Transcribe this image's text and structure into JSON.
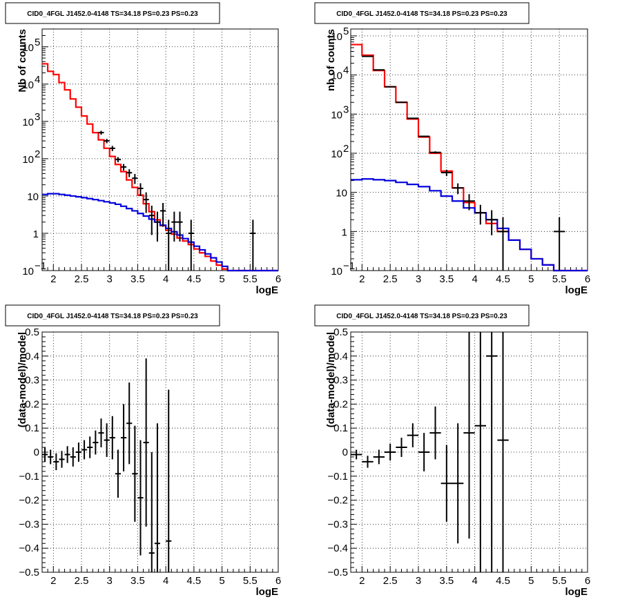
{
  "chart_data": [
    {
      "type": "line",
      "title": "CID0_4FGL J1452.0-4148 TS=34.18 PS=0.23 PS=0.23",
      "xlabel": "logE",
      "ylabel": "Nb of counts",
      "xlim": [
        1.8,
        6.0
      ],
      "ylim": [
        0.1,
        300000
      ],
      "yscale": "log",
      "x_ticks": [
        "2",
        "2.5",
        "3",
        "3.5",
        "4",
        "4.5",
        "5",
        "5.5",
        "6"
      ],
      "y_ticks": [
        {
          "v": 0.1,
          "base": "10",
          "exp": "−1"
        },
        {
          "v": 1,
          "base": "1",
          "exp": ""
        },
        {
          "v": 10,
          "base": "10",
          "exp": ""
        },
        {
          "v": 100,
          "base": "10",
          "exp": "2"
        },
        {
          "v": 1000,
          "base": "10",
          "exp": "3"
        },
        {
          "v": 10000,
          "base": "10",
          "exp": "4"
        },
        {
          "v": 100000,
          "base": "10",
          "exp": "5"
        }
      ],
      "grid": true,
      "bin_width": 0.1,
      "series": [
        {
          "kind": "step",
          "color": "#ff0000",
          "bins_lo": [
            1.8,
            1.9,
            2.0,
            2.1,
            2.2,
            2.3,
            2.4,
            2.5,
            2.6,
            2.7,
            2.8,
            2.9,
            3.0,
            3.1,
            3.2,
            3.3,
            3.4,
            3.5,
            3.6,
            3.7,
            3.8,
            3.9,
            4.0,
            4.1,
            4.2,
            4.3,
            4.4,
            4.5,
            4.6,
            4.7,
            4.8,
            4.9,
            5.0,
            5.1,
            5.2,
            5.3,
            5.4,
            5.5,
            5.6,
            5.7,
            5.8,
            5.9
          ],
          "values": [
            35000,
            22000,
            18000,
            11000,
            7000,
            4000,
            2400,
            1400,
            850,
            500,
            320,
            190,
            115,
            70,
            45,
            27,
            17,
            10.5,
            6.2,
            3.8,
            2.3,
            1.6,
            1.2,
            0.95,
            0.75,
            0.62,
            0.5,
            0.38,
            0.3,
            0.24,
            0.18,
            0.14,
            0.11,
            0.1,
            0.1,
            0.1,
            0.1,
            0.1,
            0.1,
            0.1,
            0.1,
            0.1
          ]
        },
        {
          "kind": "step",
          "color": "#0000dd",
          "bins_lo": [
            1.8,
            1.9,
            2.0,
            2.1,
            2.2,
            2.3,
            2.4,
            2.5,
            2.6,
            2.7,
            2.8,
            2.9,
            3.0,
            3.1,
            3.2,
            3.3,
            3.4,
            3.5,
            3.6,
            3.7,
            3.8,
            3.9,
            4.0,
            4.1,
            4.2,
            4.3,
            4.4,
            4.5,
            4.6,
            4.7,
            4.8,
            4.9,
            5.0,
            5.1,
            5.2,
            5.3,
            5.4,
            5.5,
            5.6,
            5.7,
            5.8,
            5.9
          ],
          "values": [
            11,
            11.5,
            11.5,
            11,
            10.5,
            10,
            9.5,
            9,
            8.5,
            8,
            7.5,
            7,
            6.5,
            6,
            5.3,
            4.6,
            4,
            3.4,
            2.9,
            2.4,
            2,
            1.65,
            1.35,
            1.1,
            0.9,
            0.72,
            0.58,
            0.45,
            0.36,
            0.28,
            0.22,
            0.17,
            0.13,
            0.1,
            0.1,
            0.1,
            0.1,
            0.1,
            0.1,
            0.1,
            0.1,
            0.1
          ]
        },
        {
          "kind": "points",
          "color": "#000000",
          "xerr": 0.05,
          "x": [
            2.85,
            2.95,
            3.05,
            3.15,
            3.25,
            3.35,
            3.45,
            3.55,
            3.65,
            3.75,
            3.85,
            3.95,
            4.05,
            4.15,
            4.25,
            4.45,
            5.55
          ],
          "y": [
            500,
            300,
            190,
            95,
            60,
            42,
            30,
            16,
            8,
            3,
            2,
            4,
            1,
            2,
            2,
            1,
            1
          ],
          "ylo": [
            440,
            260,
            160,
            80,
            48,
            32,
            21,
            10,
            3.5,
            0.9,
            0.6,
            1.5,
            0.1,
            0.6,
            0.6,
            0.1,
            0.1
          ],
          "yhi": [
            560,
            340,
            220,
            110,
            72,
            52,
            39,
            22,
            12.5,
            5.5,
            3.8,
            6.5,
            2.3,
            3.8,
            3.8,
            2.3,
            2.3
          ]
        }
      ]
    },
    {
      "type": "line",
      "title": "CID0_4FGL J1452.0-4148 TS=34.18 PS=0.23 PS=0.23",
      "xlabel": "logE",
      "ylabel": "nb of counts",
      "xlim": [
        1.8,
        6.0
      ],
      "ylim": [
        0.1,
        150000
      ],
      "yscale": "log",
      "x_ticks": [
        "2",
        "2.5",
        "3",
        "3.5",
        "4",
        "4.5",
        "5",
        "5.5",
        "6"
      ],
      "y_ticks": [
        {
          "v": 0.1,
          "base": "10",
          "exp": "−1"
        },
        {
          "v": 1,
          "base": "1",
          "exp": ""
        },
        {
          "v": 10,
          "base": "10",
          "exp": ""
        },
        {
          "v": 100,
          "base": "10",
          "exp": "2"
        },
        {
          "v": 1000,
          "base": "10",
          "exp": "3"
        },
        {
          "v": 10000,
          "base": "10",
          "exp": "4"
        },
        {
          "v": 100000,
          "base": "10",
          "exp": "5"
        }
      ],
      "grid": true,
      "bin_width": 0.2,
      "series": [
        {
          "kind": "step",
          "color": "#ff0000",
          "bins_lo": [
            1.8,
            2.0,
            2.2,
            2.4,
            2.6,
            2.8,
            3.0,
            3.2,
            3.4,
            3.6,
            3.8,
            4.0,
            4.2,
            4.4,
            4.6,
            4.8,
            5.0,
            5.2,
            5.4,
            5.6,
            5.8
          ],
          "values": [
            60000,
            32000,
            13000,
            5000,
            2000,
            750,
            260,
            100,
            35,
            13,
            5.5,
            3,
            1.6,
            1,
            0.6,
            0.35,
            0.2,
            0.14,
            0.1,
            0.1,
            0.1
          ]
        },
        {
          "kind": "step",
          "color": "#0000dd",
          "bins_lo": [
            1.8,
            2.0,
            2.2,
            2.4,
            2.6,
            2.8,
            3.0,
            3.2,
            3.4,
            3.6,
            3.8,
            4.0,
            4.2,
            4.4,
            4.6,
            4.8,
            5.0,
            5.2,
            5.4,
            5.6,
            5.8
          ],
          "values": [
            21,
            22,
            21,
            20,
            18,
            16,
            14,
            11,
            8,
            6,
            4,
            3,
            2,
            1.2,
            0.6,
            0.35,
            0.2,
            0.14,
            0.1,
            0.1,
            0.1
          ]
        },
        {
          "kind": "points",
          "color": "#000000",
          "xerr": 0.1,
          "x": [
            2.1,
            2.3,
            2.5,
            2.7,
            2.9,
            3.1,
            3.3,
            3.5,
            3.7,
            3.9,
            4.1,
            4.3,
            4.5,
            5.5
          ],
          "y": [
            30000,
            13500,
            5000,
            2000,
            780,
            270,
            105,
            32,
            13,
            6,
            3,
            2,
            1,
            1
          ],
          "ylo": [
            29500,
            13200,
            4900,
            1950,
            760,
            260,
            98,
            26,
            9,
            3.5,
            1.5,
            0.8,
            0.1,
            0.1
          ],
          "yhi": [
            30500,
            13800,
            5100,
            2050,
            800,
            280,
            112,
            38,
            17,
            9,
            4.8,
            3.5,
            2.3,
            2.3
          ]
        }
      ]
    },
    {
      "type": "scatter",
      "title": "CID0_4FGL J1452.0-4148 TS=34.18 PS=0.23 PS=0.23",
      "xlabel": "logE",
      "ylabel": "(data-model)/model",
      "xlim": [
        1.8,
        6.0
      ],
      "ylim": [
        -0.5,
        0.5
      ],
      "x_ticks": [
        "2",
        "2.5",
        "3",
        "3.5",
        "4",
        "4.5",
        "5",
        "5.5",
        "6"
      ],
      "y_ticks": [
        "−0.5",
        "−0.4",
        "−0.3",
        "−0.2",
        "−0.1",
        "0",
        "0.1",
        "0.2",
        "0.3",
        "0.4",
        "0.5"
      ],
      "grid": true,
      "xerr": 0.05,
      "points": [
        {
          "x": 1.85,
          "y": -0.01,
          "err": 0.03
        },
        {
          "x": 1.95,
          "y": -0.02,
          "err": 0.03
        },
        {
          "x": 2.05,
          "y": -0.04,
          "err": 0.035
        },
        {
          "x": 2.15,
          "y": -0.03,
          "err": 0.035
        },
        {
          "x": 2.25,
          "y": -0.01,
          "err": 0.035
        },
        {
          "x": 2.35,
          "y": -0.02,
          "err": 0.04
        },
        {
          "x": 2.45,
          "y": 0.0,
          "err": 0.04
        },
        {
          "x": 2.55,
          "y": 0.01,
          "err": 0.04
        },
        {
          "x": 2.65,
          "y": 0.02,
          "err": 0.045
        },
        {
          "x": 2.75,
          "y": 0.04,
          "err": 0.05
        },
        {
          "x": 2.85,
          "y": 0.08,
          "err": 0.06
        },
        {
          "x": 2.95,
          "y": 0.05,
          "err": 0.07
        },
        {
          "x": 3.05,
          "y": 0.06,
          "err": 0.09
        },
        {
          "x": 3.15,
          "y": -0.09,
          "err": 0.1
        },
        {
          "x": 3.25,
          "y": 0.06,
          "err": 0.14
        },
        {
          "x": 3.35,
          "y": 0.12,
          "err": 0.17
        },
        {
          "x": 3.45,
          "y": -0.09,
          "err": 0.2
        },
        {
          "x": 3.55,
          "y": -0.19,
          "err": 0.24
        },
        {
          "x": 3.65,
          "y": 0.04,
          "err": 0.35
        },
        {
          "x": 3.75,
          "y": -0.42,
          "err": 0.42
        },
        {
          "x": 3.85,
          "y": -0.38,
          "err": 0.5
        },
        {
          "x": 4.05,
          "y": -0.37,
          "err": 0.63
        }
      ]
    },
    {
      "type": "scatter",
      "title": "CID0_4FGL J1452.0-4148 TS=34.18 PS=0.23 PS=0.23",
      "xlabel": "logE",
      "ylabel": "(data-model)/model",
      "xlim": [
        1.8,
        6.0
      ],
      "ylim": [
        -0.5,
        0.5
      ],
      "x_ticks": [
        "2",
        "2.5",
        "3",
        "3.5",
        "4",
        "4.5",
        "5",
        "5.5",
        "6"
      ],
      "y_ticks": [
        "−0.5",
        "−0.4",
        "−0.3",
        "−0.2",
        "−0.1",
        "0",
        "0.1",
        "0.2",
        "0.3",
        "0.4",
        "0.5"
      ],
      "grid": true,
      "xerr": 0.1,
      "points": [
        {
          "x": 1.9,
          "y": -0.01,
          "err": 0.02
        },
        {
          "x": 2.1,
          "y": -0.04,
          "err": 0.025
        },
        {
          "x": 2.3,
          "y": -0.02,
          "err": 0.03
        },
        {
          "x": 2.5,
          "y": 0.0,
          "err": 0.035
        },
        {
          "x": 2.7,
          "y": 0.02,
          "err": 0.04
        },
        {
          "x": 2.9,
          "y": 0.07,
          "err": 0.05
        },
        {
          "x": 3.1,
          "y": 0.0,
          "err": 0.08
        },
        {
          "x": 3.3,
          "y": 0.08,
          "err": 0.11
        },
        {
          "x": 3.5,
          "y": -0.13,
          "err": 0.16
        },
        {
          "x": 3.7,
          "y": -0.13,
          "err": 0.25
        },
        {
          "x": 3.9,
          "y": 0.08,
          "err": 0.44
        },
        {
          "x": 4.1,
          "y": 0.11,
          "err": 0.7
        },
        {
          "x": 4.3,
          "y": 0.4,
          "err": 0.9
        },
        {
          "x": 4.5,
          "y": 0.05,
          "err": 0.6
        }
      ]
    }
  ]
}
